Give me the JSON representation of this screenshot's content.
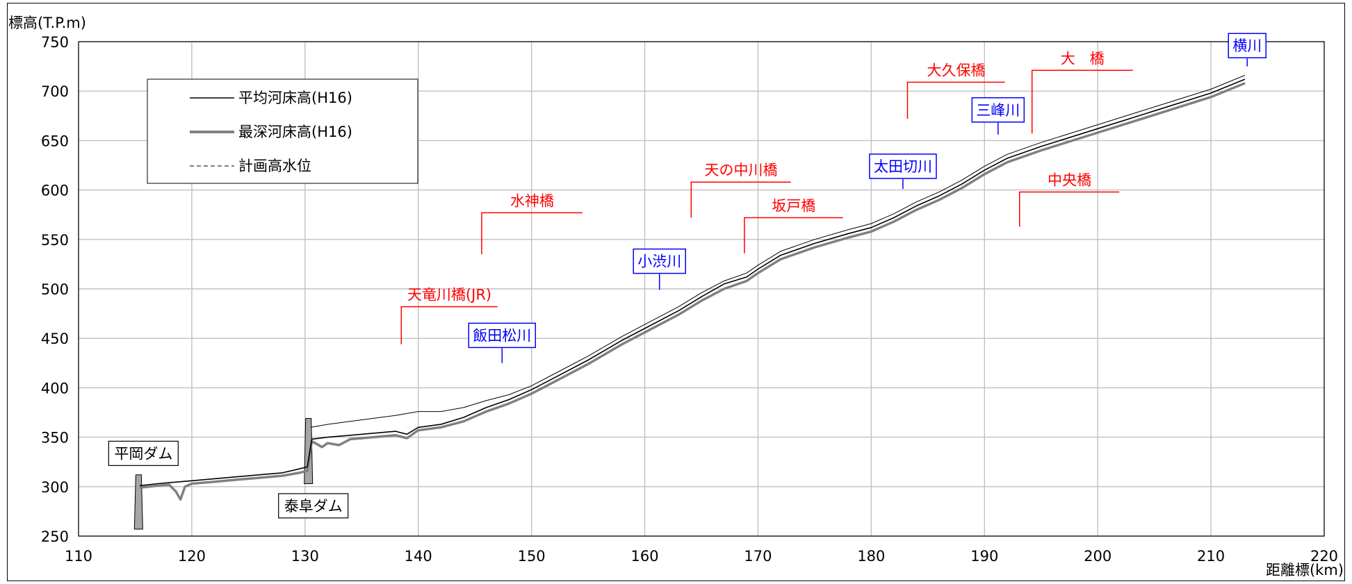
{
  "chart_data": {
    "type": "line",
    "ylabel": "標高(T.P.m)",
    "xlabel": "距離標(km)",
    "xlim": [
      110,
      220
    ],
    "ylim": [
      250,
      750
    ],
    "x_ticks": [
      110,
      120,
      130,
      140,
      150,
      160,
      170,
      180,
      190,
      200,
      210,
      220
    ],
    "y_ticks": [
      250,
      300,
      350,
      400,
      450,
      500,
      550,
      600,
      650,
      700,
      750
    ],
    "grid": true,
    "legend_position": "top-left",
    "series": [
      {
        "name": "平均河床高(H16)",
        "color": "#000000",
        "x": [
          115.4,
          117,
          118,
          119,
          120,
          122,
          124,
          126,
          128,
          129.5,
          130.2,
          130.6,
          132,
          134,
          136,
          138,
          139,
          140,
          142,
          144,
          146,
          148,
          150,
          152,
          155,
          158,
          160,
          163,
          165,
          167,
          169,
          170,
          171,
          172,
          175,
          178,
          180,
          182,
          184,
          186,
          188,
          190,
          192,
          195,
          200,
          205,
          210,
          213
        ],
        "y": [
          301,
          303,
          304,
          305,
          306,
          308,
          310,
          312,
          314,
          318,
          320,
          348,
          350,
          352,
          354,
          356,
          353,
          360,
          363,
          370,
          380,
          388,
          398,
          410,
          428,
          448,
          460,
          478,
          492,
          505,
          512,
          520,
          527,
          534,
          546,
          556,
          562,
          572,
          584,
          594,
          606,
          620,
          632,
          644,
          662,
          680,
          698,
          712
        ]
      },
      {
        "name": "最深河床高(H16)",
        "color": "#808080",
        "x": [
          115.4,
          117,
          118,
          118.6,
          119,
          119.4,
          120,
          122,
          124,
          126,
          128,
          129.5,
          130.2,
          130.6,
          131.5,
          132,
          133,
          134,
          136,
          138,
          139,
          140,
          142,
          144,
          146,
          148,
          150,
          152,
          155,
          158,
          160,
          163,
          165,
          167,
          169,
          170,
          171,
          172,
          175,
          178,
          180,
          182,
          184,
          186,
          188,
          190,
          192,
          195,
          200,
          205,
          210,
          213
        ],
        "y": [
          299,
          301,
          302,
          295,
          287,
          300,
          303,
          305,
          307,
          309,
          311,
          314,
          316,
          346,
          340,
          344,
          342,
          348,
          350,
          352,
          349,
          357,
          360,
          366,
          376,
          384,
          394,
          406,
          424,
          444,
          456,
          474,
          488,
          500,
          508,
          516,
          523,
          530,
          542,
          552,
          558,
          568,
          580,
          590,
          602,
          616,
          628,
          640,
          658,
          676,
          694,
          708
        ]
      },
      {
        "name": "計画高水位",
        "color": "#000000",
        "dashed": true,
        "x": [
          130.5,
          132,
          134,
          136,
          138,
          140,
          142,
          144,
          146,
          148,
          150,
          152,
          155,
          158,
          160,
          163,
          165,
          167,
          169,
          170,
          171,
          172,
          175,
          178,
          180,
          182,
          184,
          186,
          188,
          190,
          192,
          195,
          200,
          205,
          210,
          213
        ],
        "y": [
          360,
          363,
          366,
          369,
          372,
          376,
          376,
          380,
          387,
          393,
          402,
          414,
          432,
          452,
          464,
          482,
          496,
          508,
          516,
          524,
          531,
          538,
          550,
          560,
          566,
          576,
          588,
          598,
          610,
          624,
          636,
          648,
          666,
          684,
          702,
          716
        ]
      }
    ],
    "dams": [
      {
        "label": "平岡ダム",
        "x": 115.3,
        "top": 312,
        "bottom": 257
      },
      {
        "label": "泰阜ダム",
        "x": 130.3,
        "top": 369,
        "bottom": 303
      }
    ],
    "bridges": [
      {
        "label": "天竜川橋(JR)",
        "x": 138.5,
        "y_bottom": 444,
        "y_top": 482,
        "x_end": 147
      },
      {
        "label": "水神橋",
        "x": 145.6,
        "y_bottom": 535,
        "y_top": 577,
        "x_end": 154.5
      },
      {
        "label": "天の中川橋",
        "x": 164.1,
        "y_bottom": 572,
        "y_top": 608,
        "x_end": 172.9
      },
      {
        "label": "坂戸橋",
        "x": 168.8,
        "y_bottom": 536,
        "y_top": 572,
        "x_end": 177.5
      },
      {
        "label": "大久保橋",
        "x": 183.2,
        "y_bottom": 672,
        "y_top": 709,
        "x_end": 191.8
      },
      {
        "label": "大　橋",
        "x": 194.2,
        "y_bottom": 657,
        "y_top": 721,
        "x_end": 203.1
      },
      {
        "label": "中央橋",
        "x": 193.1,
        "y_bottom": 563,
        "y_top": 598,
        "x_end": 201.9
      }
    ],
    "tributaries": [
      {
        "label": "飯田松川",
        "x": 147.4,
        "y_line_top": 440,
        "y_line_bottom": 425
      },
      {
        "label": "小渋川",
        "x": 161.3,
        "y_line_top": 515,
        "y_line_bottom": 499
      },
      {
        "label": "太田切川",
        "x": 182.8,
        "y_line_top": 611,
        "y_line_bottom": 601
      },
      {
        "label": "三峰川",
        "x": 191.2,
        "y_line_top": 668,
        "y_line_bottom": 656
      },
      {
        "label": "横川",
        "x": 213.2,
        "y_line_top": 733,
        "y_line_bottom": 725
      }
    ]
  },
  "colors": {
    "bridge": "#ff0000",
    "tributary": "#0000ff",
    "grid": "#c0c0c0",
    "dam_fill": "#a6a6a6"
  }
}
